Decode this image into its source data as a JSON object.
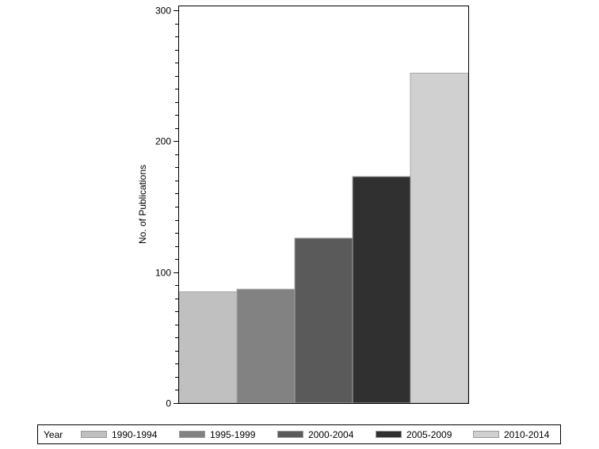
{
  "chart_data": {
    "type": "bar",
    "title": "",
    "xlabel": "",
    "ylabel": "No. of Publications",
    "ylim": [
      0,
      300
    ],
    "yticks": [
      0,
      100,
      200,
      300
    ],
    "minor_tick_step": 10,
    "grid": false,
    "legend_position": "bottom",
    "legend_title": "Year",
    "categories": [
      "1990-1994",
      "1995-1999",
      "2000-2004",
      "2005-2009",
      "2010-2014"
    ],
    "values": [
      85,
      87,
      126,
      173,
      252
    ],
    "colors": [
      "#c0c0c0",
      "#828282",
      "#5a5a5a",
      "#303030",
      "#d0d0d0"
    ]
  },
  "legend": {
    "title": "Year",
    "items": [
      {
        "label": "1990-1994",
        "color": "#c0c0c0"
      },
      {
        "label": "1995-1999",
        "color": "#828282"
      },
      {
        "label": "2000-2004",
        "color": "#5a5a5a"
      },
      {
        "label": "2005-2009",
        "color": "#303030"
      },
      {
        "label": "2010-2014",
        "color": "#d0d0d0"
      }
    ]
  }
}
